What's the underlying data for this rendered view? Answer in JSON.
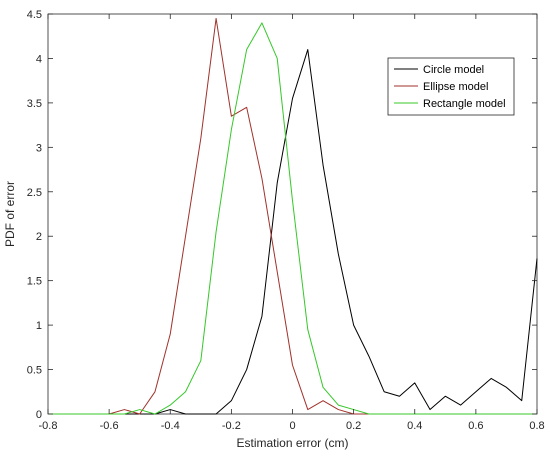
{
  "chart_data": {
    "type": "line",
    "title": "",
    "xlabel": "Estimation error (cm)",
    "ylabel": "PDF of error",
    "xlim": [
      -0.8,
      0.8
    ],
    "ylim": [
      0,
      4.5
    ],
    "x_ticks": [
      "-0.8",
      "-0.6",
      "-0.4",
      "-0.2",
      "0",
      "0.2",
      "0.4",
      "0.6",
      "0.8"
    ],
    "y_ticks": [
      "0",
      "0.5",
      "1",
      "1.5",
      "2",
      "2.5",
      "3",
      "3.5",
      "4",
      "4.5"
    ],
    "grid": false,
    "box": true,
    "legend_position": "top-right",
    "series": [
      {
        "name": "Circle model",
        "color": "#000000",
        "x": [
          -0.8,
          -0.75,
          -0.7,
          -0.65,
          -0.6,
          -0.55,
          -0.5,
          -0.45,
          -0.4,
          -0.35,
          -0.3,
          -0.25,
          -0.2,
          -0.15,
          -0.1,
          -0.05,
          0,
          0.05,
          0.1,
          0.15,
          0.2,
          0.25,
          0.3,
          0.35,
          0.4,
          0.45,
          0.5,
          0.55,
          0.6,
          0.65,
          0.7,
          0.75,
          0.8
        ],
        "y": [
          0,
          0,
          0,
          0,
          0,
          0,
          0,
          0,
          0.05,
          0,
          0,
          0,
          0.15,
          0.5,
          1.1,
          2.6,
          3.55,
          4.1,
          2.8,
          1.8,
          1.0,
          0.65,
          0.25,
          0.2,
          0.35,
          0.05,
          0.2,
          0.1,
          0.25,
          0.4,
          0.3,
          0.15,
          1.75
        ]
      },
      {
        "name": "Ellipse model",
        "color": "#a0312a",
        "x": [
          -0.8,
          -0.75,
          -0.7,
          -0.65,
          -0.6,
          -0.55,
          -0.5,
          -0.45,
          -0.4,
          -0.35,
          -0.3,
          -0.25,
          -0.2,
          -0.15,
          -0.1,
          -0.05,
          0,
          0.05,
          0.1,
          0.15,
          0.2,
          0.25,
          0.3,
          0.35,
          0.4,
          0.45,
          0.5,
          0.55,
          0.6,
          0.65,
          0.7,
          0.75,
          0.8
        ],
        "y": [
          0,
          0,
          0,
          0,
          0,
          0.05,
          0,
          0.25,
          0.9,
          2.0,
          3.1,
          4.45,
          3.35,
          3.45,
          2.65,
          1.6,
          0.55,
          0.05,
          0.15,
          0.05,
          0,
          0,
          0,
          0,
          0,
          0,
          0,
          0,
          0,
          0,
          0,
          0,
          0
        ]
      },
      {
        "name": "Rectangle model",
        "color": "#35c829",
        "x": [
          -0.8,
          -0.75,
          -0.7,
          -0.65,
          -0.6,
          -0.55,
          -0.5,
          -0.45,
          -0.4,
          -0.35,
          -0.3,
          -0.25,
          -0.2,
          -0.15,
          -0.1,
          -0.05,
          0,
          0.05,
          0.1,
          0.15,
          0.2,
          0.25,
          0.3,
          0.35,
          0.4,
          0.45,
          0.5,
          0.55,
          0.6,
          0.65,
          0.7,
          0.75,
          0.8
        ],
        "y": [
          0,
          0,
          0,
          0,
          0,
          0,
          0.05,
          0,
          0.1,
          0.25,
          0.6,
          2.05,
          3.2,
          4.1,
          4.4,
          4.0,
          2.4,
          0.95,
          0.3,
          0.1,
          0.05,
          0,
          0,
          0,
          0,
          0,
          0,
          0,
          0,
          0,
          0,
          0,
          0
        ]
      }
    ]
  }
}
